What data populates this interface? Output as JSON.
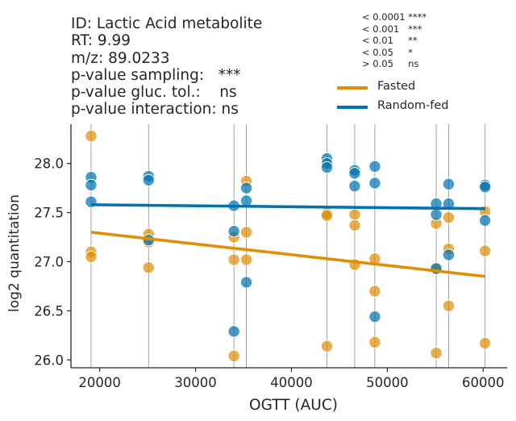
{
  "info": {
    "lines": [
      "ID: Lactic Acid metabolite",
      "RT: 9.99",
      "m/z: 89.0233",
      "p-value sampling:   ***",
      "p-value gluc. tol.:    ns",
      "p-value interaction: ns"
    ]
  },
  "pvalue_key": [
    "< 0.0001 ****",
    "< 0.001   ***",
    "< 0.01     **",
    "< 0.05     *",
    "> 0.05     ns"
  ],
  "colors": {
    "fasted": "#de8f05",
    "random_fed": "#0173b2",
    "axis": "#262626",
    "vline": "#8c8c8c"
  },
  "chart_data": {
    "type": "scatter",
    "title": "",
    "xlabel": "OGTT (AUC)",
    "ylabel": "log2 quantitation",
    "xlim": [
      17000,
      62500
    ],
    "ylim": [
      25.92,
      28.4
    ],
    "xticks": [
      20000,
      30000,
      40000,
      50000,
      60000
    ],
    "xtick_labels": [
      "20000",
      "30000",
      "40000",
      "50000",
      "60000"
    ],
    "yticks": [
      26.0,
      26.5,
      27.0,
      27.5,
      28.0
    ],
    "ytick_labels": [
      "26.0",
      "26.5",
      "27.0",
      "27.5",
      "28.0"
    ],
    "grid": false,
    "vertical_lines_x": [
      19100,
      25100,
      34000,
      35300,
      43700,
      46600,
      48700,
      55100,
      56400,
      60200
    ],
    "legend_position": "top-right, above plot",
    "series": [
      {
        "name": "Fasted",
        "color": "#de8f05",
        "points": [
          [
            19100,
            28.28
          ],
          [
            19100,
            27.1
          ],
          [
            19100,
            27.05
          ],
          [
            25100,
            27.28
          ],
          [
            25100,
            27.2
          ],
          [
            25100,
            26.94
          ],
          [
            34000,
            27.25
          ],
          [
            34000,
            27.02
          ],
          [
            34000,
            26.04
          ],
          [
            35300,
            27.82
          ],
          [
            35300,
            27.3
          ],
          [
            35300,
            27.02
          ],
          [
            43700,
            27.49
          ],
          [
            43700,
            27.47
          ],
          [
            43700,
            26.14
          ],
          [
            46600,
            27.48
          ],
          [
            46600,
            27.37
          ],
          [
            46600,
            26.97
          ],
          [
            48700,
            27.03
          ],
          [
            48700,
            26.7
          ],
          [
            48700,
            26.18
          ],
          [
            55100,
            27.39
          ],
          [
            55100,
            26.93
          ],
          [
            55100,
            26.07
          ],
          [
            56400,
            27.45
          ],
          [
            56400,
            27.13
          ],
          [
            56400,
            26.55
          ],
          [
            60200,
            27.51
          ],
          [
            60200,
            27.11
          ],
          [
            60200,
            26.17
          ]
        ],
        "fit": [
          [
            19100,
            27.3
          ],
          [
            60200,
            26.85
          ]
        ]
      },
      {
        "name": "Random-fed",
        "color": "#0173b2",
        "points": [
          [
            19100,
            27.86
          ],
          [
            19100,
            27.78
          ],
          [
            19100,
            27.61
          ],
          [
            25100,
            27.87
          ],
          [
            25100,
            27.83
          ],
          [
            25100,
            27.22
          ],
          [
            34000,
            27.57
          ],
          [
            34000,
            27.31
          ],
          [
            34000,
            26.29
          ],
          [
            35300,
            27.75
          ],
          [
            35300,
            27.62
          ],
          [
            35300,
            26.79
          ],
          [
            43700,
            28.05
          ],
          [
            43700,
            28.0
          ],
          [
            43700,
            27.96
          ],
          [
            46600,
            27.93
          ],
          [
            46600,
            27.9
          ],
          [
            46600,
            27.77
          ],
          [
            48700,
            27.97
          ],
          [
            48700,
            27.8
          ],
          [
            48700,
            26.44
          ],
          [
            55100,
            27.59
          ],
          [
            55100,
            27.48
          ],
          [
            55100,
            26.93
          ],
          [
            56400,
            27.79
          ],
          [
            56400,
            27.59
          ],
          [
            56400,
            27.07
          ],
          [
            60200,
            27.78
          ],
          [
            60200,
            27.76
          ],
          [
            60200,
            27.42
          ]
        ],
        "fit": [
          [
            19100,
            27.58
          ],
          [
            60200,
            27.54
          ]
        ]
      }
    ]
  }
}
